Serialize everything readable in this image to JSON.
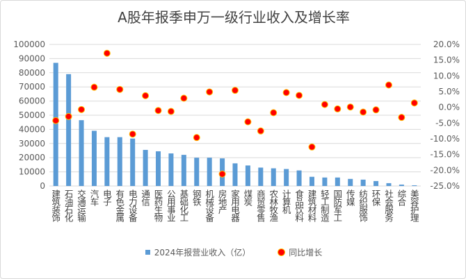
{
  "chart_data": {
    "type": "bar+scatter",
    "title": "A股年报季申万一级行业收入及增长率",
    "categories": [
      "建筑装饰",
      "石油石化",
      "交通运输",
      "汽车",
      "电子",
      "有色金属",
      "电力设备",
      "通信",
      "医药生物",
      "公用事业",
      "基础化工",
      "钢铁",
      "机械设备",
      "房地产",
      "家用电器",
      "煤炭",
      "商贸零售",
      "农林牧渔",
      "计算机",
      "食品饮料",
      "建筑材料",
      "轻工制造",
      "国防军工",
      "传媒",
      "纺织服饰",
      "环保",
      "社会服务",
      "综合",
      "美容护理"
    ],
    "series": [
      {
        "name": "2024年报营业收入（亿）",
        "type": "bar",
        "axis": "left",
        "color": "#5b9bd5",
        "values": [
          87000,
          79000,
          46500,
          39000,
          34500,
          34500,
          33500,
          25500,
          24500,
          23000,
          22000,
          20000,
          20000,
          19500,
          16000,
          14500,
          13000,
          12500,
          12000,
          11000,
          6500,
          6000,
          6000,
          5000,
          4500,
          3500,
          2000,
          1000,
          500
        ]
      },
      {
        "name": "同比增长",
        "type": "scatter",
        "axis": "right",
        "color": "#ff0000",
        "values": [
          -4.2,
          -2.9,
          -0.7,
          6.4,
          17.2,
          5.7,
          -8.5,
          3.7,
          -1.0,
          -1.3,
          2.9,
          -9.6,
          4.9,
          -21.2,
          5.4,
          -4.6,
          -7.5,
          -1.7,
          4.7,
          3.8,
          -12.6,
          0.9,
          -0.5,
          0.1,
          -1.5,
          -0.8,
          7.1,
          -3.2,
          1.4
        ]
      }
    ],
    "ylim_left": [
      0,
      100000
    ],
    "yticks_left": [
      "0",
      "10000",
      "20000",
      "30000",
      "40000",
      "50000",
      "60000",
      "70000",
      "80000",
      "90000",
      "100000"
    ],
    "ylim_right": [
      -25,
      20
    ],
    "yticks_right": [
      "-25.0%",
      "-20.0%",
      "-15.0%",
      "-10.0%",
      "-5.0%",
      "0.0%",
      "5.0%",
      "10.0%",
      "15.0%",
      "20.0%"
    ],
    "grid": true,
    "legend_position": "bottom"
  }
}
